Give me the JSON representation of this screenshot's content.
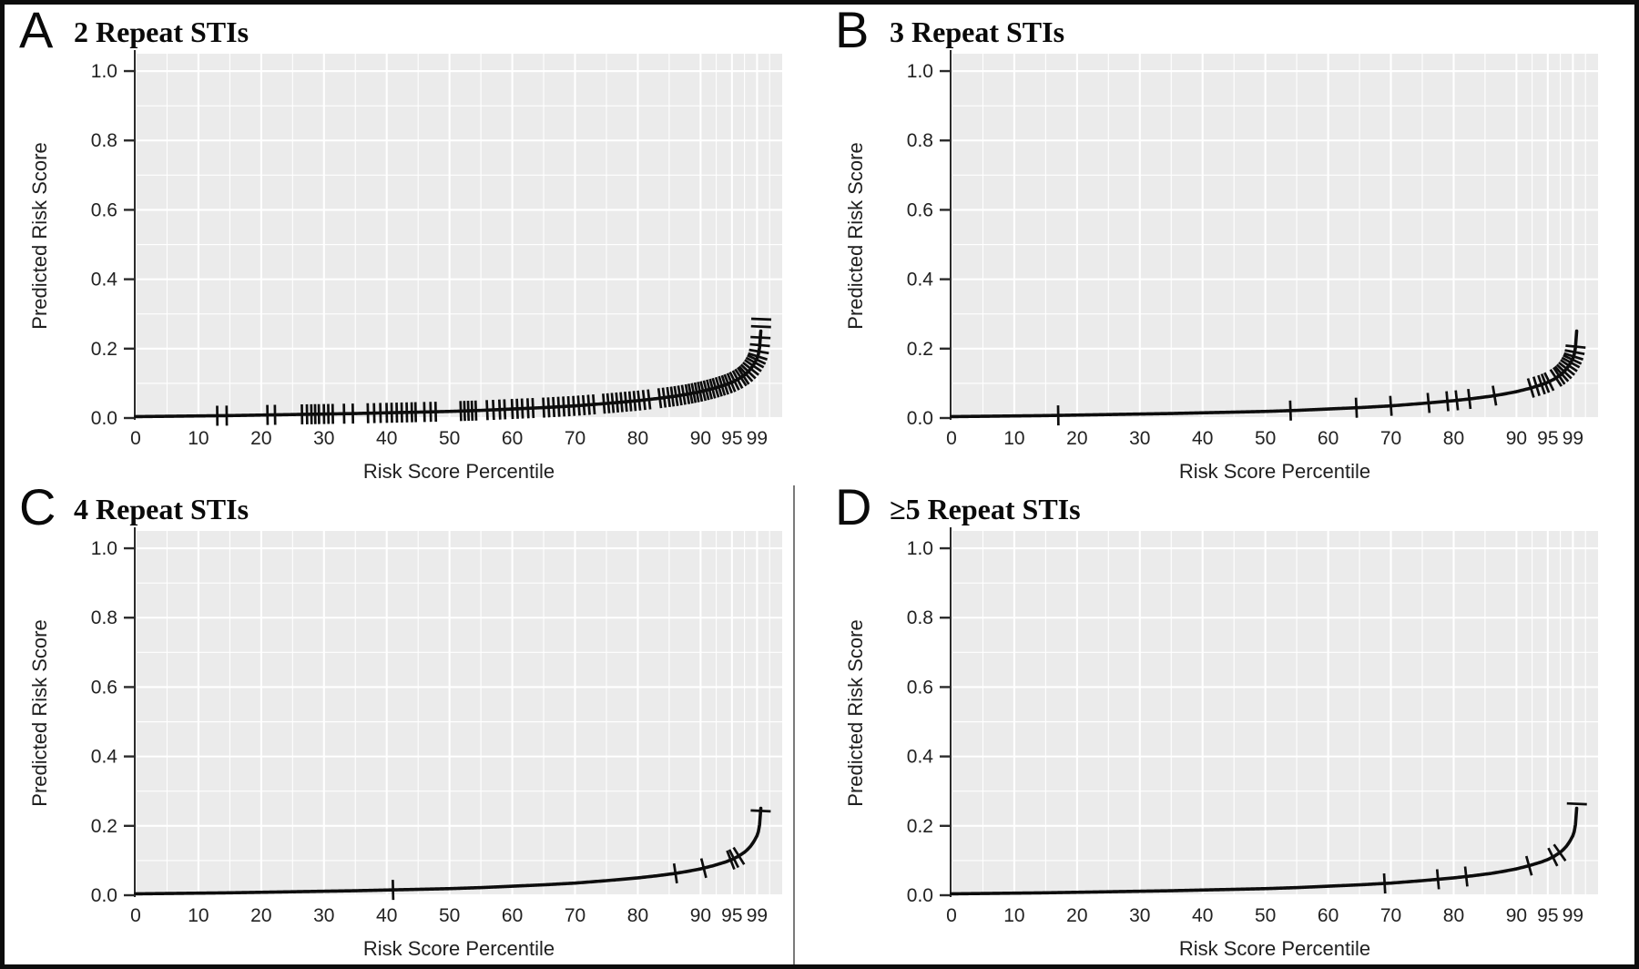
{
  "style": {
    "panel_bg": "#ebebeb",
    "grid_color": "#ffffff",
    "curve_color": "#0d0d0d",
    "spine_color": "#2b2b2b",
    "tick_text_color": "#222222",
    "frame_color": "#0d0d0d"
  },
  "chart_data": [
    {
      "type": "line",
      "panel": "A",
      "title": "2 Repeat STIs",
      "xlabel": "Risk Score Percentile",
      "ylabel": "Predicted Risk Score",
      "xlim": [
        0,
        103
      ],
      "ylim": [
        0,
        1.05
      ],
      "x_ticks": [
        0,
        10,
        20,
        30,
        40,
        50,
        60,
        70,
        80,
        90,
        95,
        99
      ],
      "x_tick_labels": [
        "0",
        "10",
        "20",
        "30",
        "40",
        "50",
        "60",
        "70",
        "80",
        "90",
        "95",
        "99"
      ],
      "y_ticks": [
        0,
        0.2,
        0.4,
        0.6,
        0.8,
        1.0
      ],
      "y_tick_labels": [
        "0.0",
        "0.2",
        "0.4",
        "0.6",
        "0.8",
        "1.0"
      ],
      "grid": true,
      "legend": "none",
      "curve": [
        [
          0,
          0.004
        ],
        [
          5,
          0.005
        ],
        [
          10,
          0.006
        ],
        [
          15,
          0.007
        ],
        [
          20,
          0.0085
        ],
        [
          25,
          0.01
        ],
        [
          30,
          0.0115
        ],
        [
          35,
          0.013
        ],
        [
          40,
          0.015
        ],
        [
          45,
          0.017
        ],
        [
          50,
          0.019
        ],
        [
          55,
          0.022
        ],
        [
          60,
          0.026
        ],
        [
          65,
          0.03
        ],
        [
          70,
          0.035
        ],
        [
          75,
          0.042
        ],
        [
          80,
          0.05
        ],
        [
          83,
          0.056
        ],
        [
          86,
          0.063
        ],
        [
          88,
          0.069
        ],
        [
          90,
          0.076
        ],
        [
          92,
          0.085
        ],
        [
          94,
          0.096
        ],
        [
          95,
          0.103
        ],
        [
          96,
          0.112
        ],
        [
          97,
          0.124
        ],
        [
          97.5,
          0.132
        ],
        [
          98,
          0.142
        ],
        [
          98.5,
          0.155
        ],
        [
          99,
          0.172
        ],
        [
          99.2,
          0.183
        ],
        [
          99.35,
          0.196
        ],
        [
          99.45,
          0.21
        ],
        [
          99.55,
          0.232
        ],
        [
          99.62,
          0.258
        ],
        [
          99.67,
          0.285
        ],
        [
          99.71,
          0.32
        ]
      ],
      "rug_marks_percentiles": [
        13,
        14.5,
        21,
        22.2,
        26.5,
        27.3,
        28,
        28.6,
        29.2,
        30,
        30.7,
        31.4,
        33.2,
        34.6,
        37,
        38,
        39,
        40,
        40.8,
        41.6,
        42.4,
        43.2,
        44,
        44.6,
        46,
        47,
        47.8,
        51.8,
        52.4,
        53,
        53.6,
        54.2,
        56,
        57,
        58,
        58.8,
        60,
        60.8,
        61.6,
        62.5,
        63.3,
        65,
        65.8,
        66.6,
        67.4,
        68.2,
        69,
        69.8,
        70.6,
        71.4,
        72.2,
        73,
        74.6,
        75.3,
        76,
        76.7,
        77.4,
        78.1,
        78.8,
        79.5,
        80.2,
        81,
        81.8,
        83.5,
        84.2,
        84.9,
        85.5,
        86.1,
        86.7,
        87.3,
        87.9,
        88.4,
        88.9,
        89.4,
        89.9,
        90.4,
        90.9,
        91.4,
        91.9,
        92.4,
        92.9,
        93.4,
        93.9,
        94.4,
        94.9,
        95.4,
        95.9,
        96.4,
        96.8,
        97.2,
        97.6,
        98,
        98.35,
        98.65,
        98.9,
        99.1,
        99.3,
        99.45,
        99.55,
        99.63,
        99.67
      ]
    },
    {
      "type": "line",
      "panel": "B",
      "title": "3 Repeat STIs",
      "xlabel": "Risk Score Percentile",
      "ylabel": "Predicted Risk Score",
      "xlim": [
        0,
        103
      ],
      "ylim": [
        0,
        1.05
      ],
      "x_ticks": [
        0,
        10,
        20,
        30,
        40,
        50,
        60,
        70,
        80,
        90,
        95,
        99
      ],
      "x_tick_labels": [
        "0",
        "10",
        "20",
        "30",
        "40",
        "50",
        "60",
        "70",
        "80",
        "90",
        "95",
        "99"
      ],
      "y_ticks": [
        0,
        0.2,
        0.4,
        0.6,
        0.8,
        1.0
      ],
      "y_tick_labels": [
        "0.0",
        "0.2",
        "0.4",
        "0.6",
        "0.8",
        "1.0"
      ],
      "grid": true,
      "legend": "none",
      "curve": [
        [
          0,
          0.004
        ],
        [
          5,
          0.005
        ],
        [
          10,
          0.006
        ],
        [
          15,
          0.007
        ],
        [
          20,
          0.0085
        ],
        [
          25,
          0.01
        ],
        [
          30,
          0.0115
        ],
        [
          35,
          0.013
        ],
        [
          40,
          0.015
        ],
        [
          45,
          0.017
        ],
        [
          50,
          0.019
        ],
        [
          55,
          0.022
        ],
        [
          60,
          0.026
        ],
        [
          65,
          0.03
        ],
        [
          70,
          0.035
        ],
        [
          75,
          0.042
        ],
        [
          80,
          0.05
        ],
        [
          83,
          0.056
        ],
        [
          86,
          0.063
        ],
        [
          88,
          0.069
        ],
        [
          90,
          0.076
        ],
        [
          92,
          0.085
        ],
        [
          94,
          0.096
        ],
        [
          95,
          0.103
        ],
        [
          96,
          0.112
        ],
        [
          97,
          0.124
        ],
        [
          97.5,
          0.132
        ],
        [
          98,
          0.142
        ],
        [
          98.5,
          0.155
        ],
        [
          99,
          0.172
        ],
        [
          99.2,
          0.183
        ],
        [
          99.35,
          0.196
        ],
        [
          99.45,
          0.21
        ],
        [
          99.55,
          0.232
        ],
        [
          99.62,
          0.258
        ],
        [
          99.67,
          0.285
        ],
        [
          99.71,
          0.33
        ]
      ],
      "rug_marks_percentiles": [
        17,
        54,
        64.5,
        70,
        76,
        79,
        80.5,
        82.5,
        86.5,
        92.3,
        93.2,
        94,
        94.6,
        95.2,
        96.3,
        96.8,
        97.2,
        97.6,
        98,
        98.35,
        98.65,
        98.9,
        99.1,
        99.28,
        99.42
      ]
    },
    {
      "type": "line",
      "panel": "C",
      "title": "4 Repeat STIs",
      "xlabel": "Risk Score Percentile",
      "ylabel": "Predicted Risk Score",
      "xlim": [
        0,
        103
      ],
      "ylim": [
        0,
        1.05
      ],
      "x_ticks": [
        0,
        10,
        20,
        30,
        40,
        50,
        60,
        70,
        80,
        90,
        95,
        99
      ],
      "x_tick_labels": [
        "0",
        "10",
        "20",
        "30",
        "40",
        "50",
        "60",
        "70",
        "80",
        "90",
        "95",
        "99"
      ],
      "y_ticks": [
        0,
        0.2,
        0.4,
        0.6,
        0.8,
        1.0
      ],
      "y_tick_labels": [
        "0.0",
        "0.2",
        "0.4",
        "0.6",
        "0.8",
        "1.0"
      ],
      "grid": true,
      "legend": "none",
      "curve": [
        [
          0,
          0.004
        ],
        [
          5,
          0.005
        ],
        [
          10,
          0.006
        ],
        [
          15,
          0.007
        ],
        [
          20,
          0.0085
        ],
        [
          25,
          0.01
        ],
        [
          30,
          0.0115
        ],
        [
          35,
          0.013
        ],
        [
          40,
          0.015
        ],
        [
          45,
          0.017
        ],
        [
          50,
          0.019
        ],
        [
          55,
          0.022
        ],
        [
          60,
          0.026
        ],
        [
          65,
          0.03
        ],
        [
          70,
          0.035
        ],
        [
          75,
          0.042
        ],
        [
          80,
          0.05
        ],
        [
          83,
          0.056
        ],
        [
          86,
          0.063
        ],
        [
          88,
          0.069
        ],
        [
          90,
          0.076
        ],
        [
          92,
          0.085
        ],
        [
          94,
          0.096
        ],
        [
          95,
          0.103
        ],
        [
          96,
          0.112
        ],
        [
          97,
          0.124
        ],
        [
          97.5,
          0.132
        ],
        [
          98,
          0.142
        ],
        [
          98.5,
          0.155
        ],
        [
          99,
          0.172
        ],
        [
          99.2,
          0.183
        ],
        [
          99.35,
          0.196
        ],
        [
          99.45,
          0.21
        ],
        [
          99.55,
          0.232
        ],
        [
          99.62,
          0.258
        ],
        [
          99.67,
          0.285
        ],
        [
          99.71,
          0.33
        ]
      ],
      "rug_marks_percentiles": [
        41,
        86,
        90.5,
        94.8,
        95.3,
        96.1,
        99.58
      ]
    },
    {
      "type": "line",
      "panel": "D",
      "title": "≥5 Repeat STIs",
      "xlabel": "Risk Score Percentile",
      "ylabel": "Predicted Risk Score",
      "xlim": [
        0,
        103
      ],
      "ylim": [
        0,
        1.05
      ],
      "x_ticks": [
        0,
        10,
        20,
        30,
        40,
        50,
        60,
        70,
        80,
        90,
        95,
        99
      ],
      "x_tick_labels": [
        "0",
        "10",
        "20",
        "30",
        "40",
        "50",
        "60",
        "70",
        "80",
        "90",
        "95",
        "99"
      ],
      "y_ticks": [
        0,
        0.2,
        0.4,
        0.6,
        0.8,
        1.0
      ],
      "y_tick_labels": [
        "0.0",
        "0.2",
        "0.4",
        "0.6",
        "0.8",
        "1.0"
      ],
      "grid": true,
      "legend": "none",
      "curve": [
        [
          0,
          0.004
        ],
        [
          5,
          0.005
        ],
        [
          10,
          0.006
        ],
        [
          15,
          0.007
        ],
        [
          20,
          0.0085
        ],
        [
          25,
          0.01
        ],
        [
          30,
          0.0115
        ],
        [
          35,
          0.013
        ],
        [
          40,
          0.015
        ],
        [
          45,
          0.017
        ],
        [
          50,
          0.019
        ],
        [
          55,
          0.022
        ],
        [
          60,
          0.026
        ],
        [
          65,
          0.03
        ],
        [
          70,
          0.035
        ],
        [
          75,
          0.042
        ],
        [
          80,
          0.05
        ],
        [
          83,
          0.056
        ],
        [
          86,
          0.063
        ],
        [
          88,
          0.069
        ],
        [
          90,
          0.076
        ],
        [
          92,
          0.085
        ],
        [
          94,
          0.096
        ],
        [
          95,
          0.103
        ],
        [
          96,
          0.112
        ],
        [
          97,
          0.124
        ],
        [
          97.5,
          0.132
        ],
        [
          98,
          0.142
        ],
        [
          98.5,
          0.155
        ],
        [
          99,
          0.172
        ],
        [
          99.2,
          0.183
        ],
        [
          99.35,
          0.196
        ],
        [
          99.45,
          0.21
        ],
        [
          99.55,
          0.232
        ],
        [
          99.62,
          0.258
        ],
        [
          99.67,
          0.285
        ],
        [
          99.71,
          0.32
        ]
      ],
      "rug_marks_percentiles": [
        69,
        77.5,
        82,
        92,
        95.8,
        96.9,
        99.63
      ]
    }
  ]
}
